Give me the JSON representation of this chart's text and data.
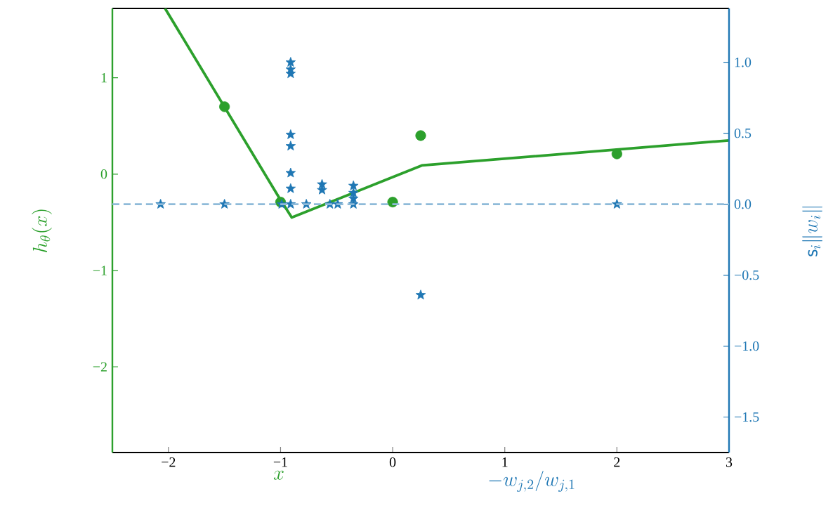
{
  "chart_data": {
    "type": "scatter",
    "xlabel": "x",
    "ylabel": "h_\\theta(x)",
    "y2label": "\\mathsf{s}_i\\|w_i\\|",
    "annotations": [
      "-w_{j,2}/w_{j,1}"
    ],
    "xlim": [
      -2.5,
      3
    ],
    "ylim": [
      -2.89,
      1.72
    ],
    "y2lim": [
      -1.75,
      1.38
    ],
    "xticks": [
      {
        "value": -2,
        "label": "−2"
      },
      {
        "value": -1,
        "label": "−1"
      },
      0,
      1,
      2,
      3
    ],
    "yticks": [
      {
        "value": -2,
        "label": "−2"
      },
      {
        "value": -1,
        "label": "−1"
      },
      0,
      1
    ],
    "y2ticks": [
      {
        "value": -1.5,
        "label": "−1.5"
      },
      {
        "value": -1.0,
        "label": "−1.0"
      },
      {
        "value": -0.5,
        "label": "−0.5"
      },
      {
        "value": 0,
        "label": "0.0"
      },
      {
        "value": 0.5,
        "label": "0.5"
      },
      {
        "value": 1.0,
        "label": "1.0"
      }
    ],
    "grid": false,
    "ref_lines": [
      {
        "axis": "y2",
        "value": 0,
        "color": "#8fbbd9",
        "line_style": "dashed"
      }
    ],
    "series": [
      {
        "type": "line",
        "color": "#2ca02c",
        "marker": "none",
        "line_style": "solid",
        "x": [
          -2.03,
          -1.01,
          -0.9,
          0.26,
          3
        ],
        "values": [
          1.72,
          -0.25,
          -0.45,
          0.09,
          0.35
        ]
      },
      {
        "color": "#2ca02c",
        "marker": "circle",
        "x": [
          -1.5,
          -1,
          0,
          0.25,
          2
        ],
        "values": [
          0.7,
          -0.29,
          -0.29,
          0.4,
          0.21
        ]
      },
      {
        "axis": "y2",
        "color": "#1f77b4",
        "marker": "star",
        "x": [
          -2.07,
          -1.5,
          -0.99,
          -0.91,
          -0.77,
          -0.56,
          -0.49,
          -0.35,
          2.0,
          -0.91,
          -0.91,
          -0.91,
          -0.91,
          -0.91,
          -0.91,
          -0.91,
          -0.63,
          -0.63,
          -0.35,
          -0.35,
          -0.35,
          0.25
        ],
        "values": [
          0,
          0,
          0,
          0,
          0,
          0,
          0,
          0,
          0,
          1.0,
          0.95,
          0.92,
          0.49,
          0.41,
          0.22,
          0.11,
          0.14,
          0.1,
          0.13,
          0.08,
          0.04,
          -0.64
        ]
      }
    ]
  }
}
